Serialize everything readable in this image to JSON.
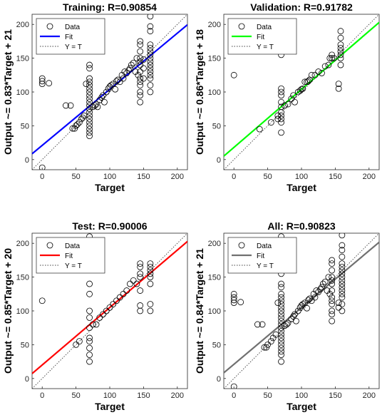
{
  "chart_data": [
    {
      "type": "scatter",
      "title": "Training: R=0.90854",
      "xlabel": "Target",
      "ylabel": "Output ~= 0.83*Target + 21",
      "xlim": [
        -15,
        215
      ],
      "ylim": [
        -15,
        215
      ],
      "xticks": [
        0,
        50,
        100,
        150,
        200
      ],
      "yticks": [
        0,
        50,
        100,
        150,
        200
      ],
      "grid": false,
      "legend": {
        "placement": "top-left",
        "entries": [
          "Data",
          "Fit",
          "Y = T"
        ]
      },
      "fit": {
        "slope": 0.83,
        "intercept": 21,
        "color": "#0000ff"
      },
      "data_points": [
        [
          0,
          -12
        ],
        [
          0,
          112
        ],
        [
          0,
          116
        ],
        [
          0,
          120
        ],
        [
          10,
          113
        ],
        [
          35,
          80
        ],
        [
          42,
          80
        ],
        [
          45,
          46
        ],
        [
          48,
          46
        ],
        [
          50,
          50
        ],
        [
          52,
          52
        ],
        [
          55,
          55
        ],
        [
          58,
          60
        ],
        [
          60,
          62
        ],
        [
          62,
          65
        ],
        [
          65,
          112
        ],
        [
          70,
          35
        ],
        [
          70,
          40
        ],
        [
          70,
          45
        ],
        [
          70,
          50
        ],
        [
          70,
          55
        ],
        [
          70,
          60
        ],
        [
          70,
          65
        ],
        [
          70,
          70
        ],
        [
          70,
          75
        ],
        [
          70,
          80
        ],
        [
          70,
          85
        ],
        [
          70,
          90
        ],
        [
          70,
          95
        ],
        [
          70,
          100
        ],
        [
          70,
          105
        ],
        [
          70,
          110
        ],
        [
          70,
          115
        ],
        [
          70,
          120
        ],
        [
          70,
          135
        ],
        [
          70,
          140
        ],
        [
          75,
          78
        ],
        [
          78,
          80
        ],
        [
          80,
          82
        ],
        [
          82,
          78
        ],
        [
          85,
          88
        ],
        [
          88,
          92
        ],
        [
          90,
          95
        ],
        [
          92,
          85
        ],
        [
          95,
          100
        ],
        [
          98,
          105
        ],
        [
          100,
          108
        ],
        [
          102,
          110
        ],
        [
          105,
          112
        ],
        [
          108,
          104
        ],
        [
          110,
          116
        ],
        [
          112,
          118
        ],
        [
          115,
          115
        ],
        [
          118,
          125
        ],
        [
          120,
          120
        ],
        [
          122,
          130
        ],
        [
          125,
          128
        ],
        [
          128,
          132
        ],
        [
          130,
          135
        ],
        [
          132,
          140
        ],
        [
          135,
          143
        ],
        [
          138,
          130
        ],
        [
          140,
          150
        ],
        [
          142,
          125
        ],
        [
          145,
          85
        ],
        [
          145,
          95
        ],
        [
          145,
          100
        ],
        [
          145,
          110
        ],
        [
          145,
          115
        ],
        [
          145,
          120
        ],
        [
          145,
          130
        ],
        [
          145,
          140
        ],
        [
          145,
          145
        ],
        [
          145,
          150
        ],
        [
          145,
          160
        ],
        [
          145,
          170
        ],
        [
          145,
          175
        ],
        [
          150,
          120
        ],
        [
          150,
          135
        ],
        [
          150,
          148
        ],
        [
          160,
          100
        ],
        [
          160,
          110
        ],
        [
          160,
          120
        ],
        [
          160,
          125
        ],
        [
          160,
          130
        ],
        [
          160,
          135
        ],
        [
          160,
          140
        ],
        [
          160,
          145
        ],
        [
          160,
          150
        ],
        [
          160,
          155
        ],
        [
          160,
          160
        ],
        [
          160,
          165
        ],
        [
          160,
          170
        ],
        [
          160,
          190
        ],
        [
          160,
          197
        ],
        [
          160,
          212
        ]
      ]
    },
    {
      "type": "scatter",
      "title": "Validation: R=0.91782",
      "xlabel": "Target",
      "ylabel": "Output ~= 0.86*Target + 18",
      "xlim": [
        -15,
        215
      ],
      "ylim": [
        -15,
        215
      ],
      "xticks": [
        0,
        50,
        100,
        150,
        200
      ],
      "yticks": [
        0,
        50,
        100,
        150,
        200
      ],
      "grid": false,
      "legend": {
        "placement": "top-left",
        "entries": [
          "Data",
          "Fit",
          "Y = T"
        ]
      },
      "fit": {
        "slope": 0.86,
        "intercept": 18,
        "color": "#00ff00"
      },
      "data_points": [
        [
          0,
          125
        ],
        [
          38,
          45
        ],
        [
          55,
          55
        ],
        [
          65,
          60
        ],
        [
          65,
          65
        ],
        [
          70,
          40
        ],
        [
          70,
          55
        ],
        [
          70,
          60
        ],
        [
          70,
          65
        ],
        [
          70,
          70
        ],
        [
          70,
          78
        ],
        [
          70,
          85
        ],
        [
          70,
          95
        ],
        [
          70,
          100
        ],
        [
          70,
          105
        ],
        [
          70,
          155
        ],
        [
          75,
          80
        ],
        [
          80,
          82
        ],
        [
          85,
          90
        ],
        [
          88,
          95
        ],
        [
          90,
          85
        ],
        [
          95,
          100
        ],
        [
          98,
          102
        ],
        [
          100,
          104
        ],
        [
          102,
          105
        ],
        [
          105,
          115
        ],
        [
          108,
          115
        ],
        [
          110,
          116
        ],
        [
          112,
          118
        ],
        [
          115,
          125
        ],
        [
          120,
          125
        ],
        [
          125,
          130
        ],
        [
          130,
          128
        ],
        [
          135,
          138
        ],
        [
          140,
          140
        ],
        [
          142,
          150
        ],
        [
          145,
          150
        ],
        [
          145,
          155
        ],
        [
          148,
          150
        ],
        [
          155,
          105
        ],
        [
          155,
          112
        ],
        [
          158,
          140
        ],
        [
          158,
          150
        ],
        [
          158,
          155
        ],
        [
          158,
          160
        ],
        [
          158,
          165
        ],
        [
          158,
          170
        ],
        [
          158,
          180
        ],
        [
          158,
          190
        ]
      ]
    },
    {
      "type": "scatter",
      "title": "Test: R=0.90006",
      "xlabel": "Target",
      "ylabel": "Output ~= 0.85*Target + 20",
      "xlim": [
        -15,
        215
      ],
      "ylim": [
        -15,
        215
      ],
      "xticks": [
        0,
        50,
        100,
        150,
        200
      ],
      "yticks": [
        0,
        50,
        100,
        150,
        200
      ],
      "grid": false,
      "legend": {
        "placement": "top-left",
        "entries": [
          "Data",
          "Fit",
          "Y = T"
        ]
      },
      "fit": {
        "slope": 0.85,
        "intercept": 20,
        "color": "#ff0000"
      },
      "data_points": [
        [
          0,
          115
        ],
        [
          50,
          50
        ],
        [
          55,
          55
        ],
        [
          70,
          25
        ],
        [
          70,
          35
        ],
        [
          70,
          45
        ],
        [
          70,
          55
        ],
        [
          70,
          60
        ],
        [
          70,
          75
        ],
        [
          70,
          90
        ],
        [
          70,
          100
        ],
        [
          70,
          125
        ],
        [
          70,
          140
        ],
        [
          70,
          210
        ],
        [
          75,
          80
        ],
        [
          80,
          80
        ],
        [
          85,
          90
        ],
        [
          90,
          95
        ],
        [
          95,
          100
        ],
        [
          100,
          105
        ],
        [
          105,
          110
        ],
        [
          110,
          115
        ],
        [
          115,
          120
        ],
        [
          120,
          125
        ],
        [
          125,
          130
        ],
        [
          130,
          140
        ],
        [
          135,
          145
        ],
        [
          140,
          140
        ],
        [
          145,
          100
        ],
        [
          145,
          108
        ],
        [
          145,
          130
        ],
        [
          145,
          150
        ],
        [
          145,
          155
        ],
        [
          145,
          165
        ],
        [
          145,
          170
        ],
        [
          160,
          100
        ],
        [
          160,
          110
        ],
        [
          160,
          140
        ],
        [
          160,
          150
        ],
        [
          160,
          155
        ],
        [
          160,
          160
        ],
        [
          160,
          165
        ],
        [
          160,
          170
        ]
      ]
    },
    {
      "type": "scatter",
      "title": "All: R=0.90823",
      "xlabel": "Target",
      "ylabel": "Output ~= 0.84*Target + 21",
      "xlim": [
        -15,
        215
      ],
      "ylim": [
        -15,
        215
      ],
      "xticks": [
        0,
        50,
        100,
        150,
        200
      ],
      "yticks": [
        0,
        50,
        100,
        150,
        200
      ],
      "grid": false,
      "legend": {
        "placement": "top-left",
        "entries": [
          "Data",
          "Fit",
          "Y = T"
        ]
      },
      "fit": {
        "slope": 0.84,
        "intercept": 21,
        "color": "#707070"
      },
      "data_points": [
        [
          0,
          -12
        ],
        [
          0,
          112
        ],
        [
          0,
          116
        ],
        [
          0,
          120
        ],
        [
          0,
          125
        ],
        [
          10,
          113
        ],
        [
          35,
          80
        ],
        [
          42,
          80
        ],
        [
          45,
          46
        ],
        [
          48,
          46
        ],
        [
          50,
          50
        ],
        [
          55,
          55
        ],
        [
          58,
          60
        ],
        [
          62,
          65
        ],
        [
          65,
          112
        ],
        [
          70,
          25
        ],
        [
          70,
          35
        ],
        [
          70,
          40
        ],
        [
          70,
          45
        ],
        [
          70,
          50
        ],
        [
          70,
          55
        ],
        [
          70,
          60
        ],
        [
          70,
          65
        ],
        [
          70,
          70
        ],
        [
          70,
          75
        ],
        [
          70,
          80
        ],
        [
          70,
          85
        ],
        [
          70,
          90
        ],
        [
          70,
          95
        ],
        [
          70,
          100
        ],
        [
          70,
          105
        ],
        [
          70,
          110
        ],
        [
          70,
          115
        ],
        [
          70,
          120
        ],
        [
          70,
          125
        ],
        [
          70,
          135
        ],
        [
          70,
          140
        ],
        [
          70,
          155
        ],
        [
          70,
          210
        ],
        [
          75,
          78
        ],
        [
          78,
          80
        ],
        [
          80,
          82
        ],
        [
          85,
          88
        ],
        [
          88,
          92
        ],
        [
          90,
          95
        ],
        [
          92,
          85
        ],
        [
          95,
          100
        ],
        [
          98,
          105
        ],
        [
          100,
          108
        ],
        [
          102,
          110
        ],
        [
          105,
          112
        ],
        [
          108,
          104
        ],
        [
          110,
          116
        ],
        [
          112,
          118
        ],
        [
          115,
          115
        ],
        [
          118,
          125
        ],
        [
          120,
          120
        ],
        [
          122,
          130
        ],
        [
          125,
          128
        ],
        [
          128,
          132
        ],
        [
          130,
          135
        ],
        [
          132,
          140
        ],
        [
          135,
          143
        ],
        [
          138,
          130
        ],
        [
          140,
          150
        ],
        [
          142,
          125
        ],
        [
          145,
          85
        ],
        [
          145,
          95
        ],
        [
          145,
          100
        ],
        [
          145,
          110
        ],
        [
          145,
          115
        ],
        [
          145,
          120
        ],
        [
          145,
          130
        ],
        [
          145,
          140
        ],
        [
          145,
          145
        ],
        [
          145,
          150
        ],
        [
          145,
          160
        ],
        [
          145,
          170
        ],
        [
          145,
          175
        ],
        [
          155,
          105
        ],
        [
          155,
          112
        ],
        [
          160,
          100
        ],
        [
          160,
          110
        ],
        [
          160,
          120
        ],
        [
          160,
          125
        ],
        [
          160,
          130
        ],
        [
          160,
          135
        ],
        [
          160,
          140
        ],
        [
          160,
          145
        ],
        [
          160,
          150
        ],
        [
          160,
          155
        ],
        [
          160,
          160
        ],
        [
          160,
          165
        ],
        [
          160,
          170
        ],
        [
          160,
          180
        ],
        [
          160,
          190
        ],
        [
          160,
          197
        ],
        [
          160,
          212
        ]
      ]
    }
  ]
}
